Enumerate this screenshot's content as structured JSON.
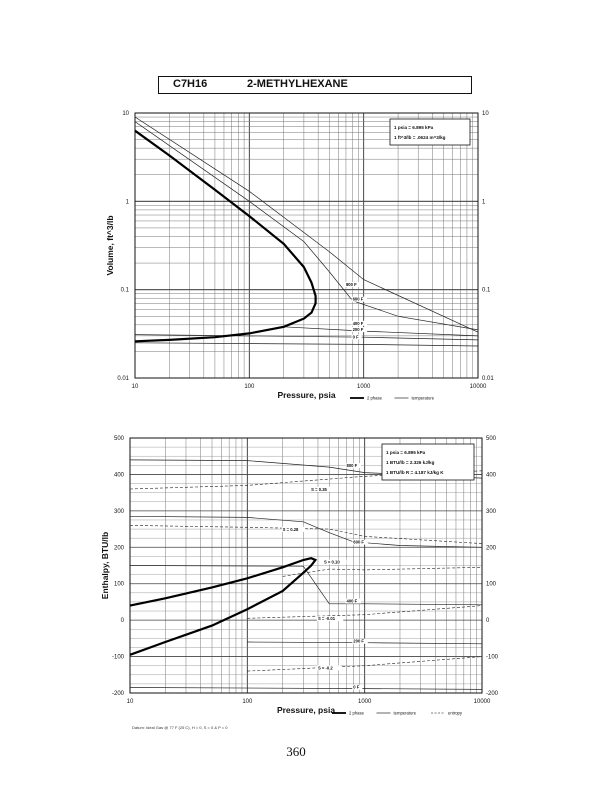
{
  "header": {
    "formula": "C7H16",
    "compound": "2-METHYLHEXANE"
  },
  "page_number": "360",
  "footnote": "Datum: Ideal Gas @ 77 F (25 C), H = 0, S = 0 & P = 0",
  "chart_data": [
    {
      "type": "line",
      "title": "",
      "xlabel": "Pressure, psia",
      "ylabel": "Volume, ft^3/lb",
      "xscale": "log",
      "yscale": "log",
      "xlim": [
        10,
        10000
      ],
      "ylim": [
        0.01,
        10
      ],
      "x_ticks": [
        {
          "v": 10,
          "label": "10"
        },
        {
          "v": 100,
          "label": "100"
        },
        {
          "v": 1000,
          "label": "1000"
        },
        {
          "v": 10000,
          "label": "10000"
        }
      ],
      "y_ticks": [
        {
          "v": 0.01,
          "label": "0.01"
        },
        {
          "v": 0.1,
          "label": "0.1"
        },
        {
          "v": 1,
          "label": "1"
        },
        {
          "v": 10,
          "label": "10"
        }
      ],
      "grid": true,
      "conversion_box": [
        "1 psia = 6.895 kPa",
        "1 ft^3/lb = .0624 m^3/kg"
      ],
      "legend": {
        "placement": "bottom-right",
        "entries": [
          {
            "label": "2 phase",
            "style": "thick"
          },
          {
            "label": "temperature",
            "style": "thin"
          }
        ]
      },
      "two_phase": {
        "name": "2 phase",
        "points": [
          [
            10,
            6.3
          ],
          [
            20,
            3.3
          ],
          [
            50,
            1.35
          ],
          [
            100,
            0.68
          ],
          [
            200,
            0.33
          ],
          [
            300,
            0.18
          ],
          [
            350,
            0.12
          ],
          [
            380,
            0.085
          ],
          [
            380,
            0.07
          ],
          [
            350,
            0.055
          ],
          [
            300,
            0.047
          ],
          [
            200,
            0.038
          ],
          [
            100,
            0.032
          ],
          [
            50,
            0.029
          ],
          [
            20,
            0.027
          ],
          [
            10,
            0.026
          ]
        ]
      },
      "isotherms": [
        {
          "label": "800 F",
          "points": [
            [
              10,
              9
            ],
            [
              100,
              1.3
            ],
            [
              500,
              0.27
            ],
            [
              1000,
              0.13
            ],
            [
              10000,
              0.033
            ]
          ]
        },
        {
          "label": "600 F",
          "points": [
            [
              10,
              8
            ],
            [
              100,
              1.0
            ],
            [
              300,
              0.35
            ],
            [
              500,
              0.16
            ],
            [
              800,
              0.075
            ],
            [
              2000,
              0.05
            ],
            [
              10000,
              0.035
            ]
          ]
        },
        {
          "label": "400 F",
          "points": [
            [
              200,
              0.038
            ],
            [
              1000,
              0.034
            ],
            [
              10000,
              0.03
            ]
          ]
        },
        {
          "label": "200 F",
          "points": [
            [
              10,
              0.031
            ],
            [
              1000,
              0.029
            ],
            [
              10000,
              0.027
            ]
          ]
        },
        {
          "label": "0 F",
          "points": [
            [
              10,
              0.025
            ],
            [
              1000,
              0.024
            ],
            [
              10000,
              0.023
            ]
          ]
        }
      ],
      "curve_labels": [
        {
          "text": "800 F",
          "x": 700,
          "y": 0.11
        },
        {
          "text": "600 F",
          "x": 800,
          "y": 0.075
        },
        {
          "text": "400 F",
          "x": 800,
          "y": 0.04
        },
        {
          "text": "200 F",
          "x": 800,
          "y": 0.034
        },
        {
          "text": "0 F",
          "x": 800,
          "y": 0.028
        }
      ]
    },
    {
      "type": "line",
      "title": "",
      "xlabel": "Pressure, psia",
      "ylabel": "Enthalpy, BTU/lb",
      "xscale": "log",
      "yscale": "linear",
      "xlim": [
        10,
        10000
      ],
      "ylim": [
        -200,
        500
      ],
      "x_ticks": [
        {
          "v": 10,
          "label": "10"
        },
        {
          "v": 100,
          "label": "100"
        },
        {
          "v": 1000,
          "label": "1000"
        },
        {
          "v": 10000,
          "label": "10000"
        }
      ],
      "y_ticks": [
        {
          "v": -200,
          "label": "-200"
        },
        {
          "v": -100,
          "label": "-100"
        },
        {
          "v": 0,
          "label": "0"
        },
        {
          "v": 100,
          "label": "100"
        },
        {
          "v": 200,
          "label": "200"
        },
        {
          "v": 300,
          "label": "300"
        },
        {
          "v": 400,
          "label": "400"
        },
        {
          "v": 500,
          "label": "500"
        }
      ],
      "grid": true,
      "conversion_box": [
        "1 psia = 6.895 kPa",
        "1 BTU/lb = 2.326 kJ/kg",
        "1 BTU/lb R = 4.187 kJ/kg K"
      ],
      "legend": {
        "placement": "bottom-right",
        "entries": [
          {
            "label": "2 phase",
            "style": "thick"
          },
          {
            "label": "temperature",
            "style": "thin"
          },
          {
            "label": "entropy",
            "style": "dashed"
          }
        ]
      },
      "two_phase": {
        "name": "2 phase",
        "points": [
          [
            10,
            40
          ],
          [
            20,
            60
          ],
          [
            50,
            90
          ],
          [
            100,
            115
          ],
          [
            200,
            145
          ],
          [
            300,
            165
          ],
          [
            350,
            170
          ],
          [
            380,
            165
          ],
          [
            350,
            150
          ],
          [
            300,
            130
          ],
          [
            200,
            80
          ],
          [
            100,
            30
          ],
          [
            50,
            -15
          ],
          [
            20,
            -60
          ],
          [
            10,
            -95
          ]
        ]
      },
      "isotherms": [
        {
          "label": "800 F",
          "points": [
            [
              10,
              440
            ],
            [
              100,
              438
            ],
            [
              500,
              420
            ],
            [
              1000,
              405
            ],
            [
              10000,
              390
            ]
          ]
        },
        {
          "label": "600 F",
          "points": [
            [
              10,
              285
            ],
            [
              100,
              282
            ],
            [
              300,
              270
            ],
            [
              500,
              240
            ],
            [
              800,
              215
            ],
            [
              2000,
              205
            ],
            [
              10000,
              200
            ]
          ]
        },
        {
          "label": "400 F",
          "points": [
            [
              10,
              150
            ],
            [
              300,
              148
            ],
            [
              500,
              45
            ],
            [
              1000,
              45
            ],
            [
              10000,
              42
            ]
          ]
        },
        {
          "label": "200 F",
          "points": [
            [
              100,
              -60
            ],
            [
              1000,
              -62
            ],
            [
              10000,
              -65
            ]
          ]
        },
        {
          "label": "0 F",
          "points": [
            [
              10,
              -185
            ],
            [
              1000,
              -188
            ],
            [
              10000,
              -190
            ]
          ]
        }
      ],
      "entropy_lines": [
        {
          "label": "S = 0.35",
          "points": [
            [
              10,
              360
            ],
            [
              100,
              370
            ],
            [
              1000,
              395
            ],
            [
              10000,
              410
            ]
          ]
        },
        {
          "label": "S = 0.28",
          "points": [
            [
              10,
              260
            ],
            [
              100,
              255
            ],
            [
              500,
              250
            ],
            [
              1000,
              230
            ],
            [
              10000,
              210
            ]
          ]
        },
        {
          "label": "S = 0.10",
          "points": [
            [
              200,
              120
            ],
            [
              500,
              140
            ],
            [
              1000,
              138
            ],
            [
              10000,
              145
            ]
          ]
        },
        {
          "label": "S = -0.01",
          "points": [
            [
              100,
              5
            ],
            [
              1000,
              15
            ],
            [
              10000,
              40
            ]
          ]
        },
        {
          "label": "S = -0.2",
          "points": [
            [
              100,
              -140
            ],
            [
              1000,
              -125
            ],
            [
              10000,
              -100
            ]
          ]
        }
      ],
      "curve_labels": [
        {
          "text": "800 F",
          "x": 700,
          "y": 420
        },
        {
          "text": "600 F",
          "x": 800,
          "y": 210
        },
        {
          "text": "400 F",
          "x": 700,
          "y": 48
        },
        {
          "text": "200 F",
          "x": 800,
          "y": -62
        },
        {
          "text": "0 F",
          "x": 800,
          "y": -188
        },
        {
          "text": "S = 0.35",
          "x": 350,
          "y": 355
        },
        {
          "text": "S = 0.28",
          "x": 200,
          "y": 245
        },
        {
          "text": "S = 0.10",
          "x": 450,
          "y": 155
        },
        {
          "text": "S = -0.01",
          "x": 400,
          "y": 0
        },
        {
          "text": "S = -0.2",
          "x": 400,
          "y": -135
        }
      ]
    }
  ]
}
